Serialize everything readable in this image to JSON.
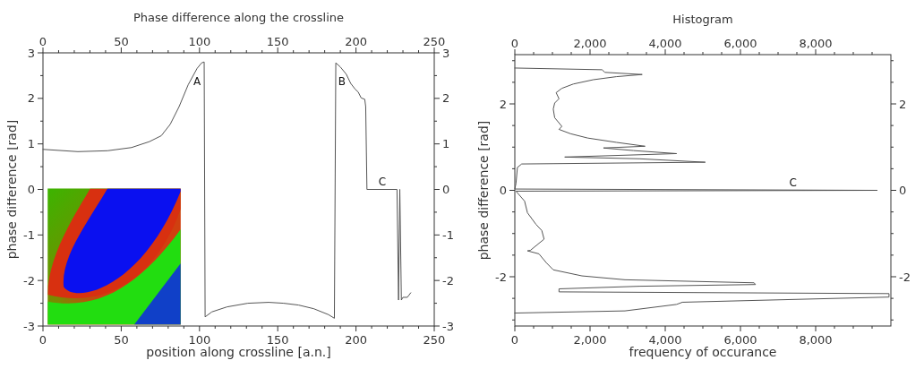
{
  "chart_data": [
    {
      "type": "line",
      "title": "Phase difference along the crossline",
      "xlabel": "position along crossline [a.n.]",
      "ylabel": "phase difference [rad]",
      "color": "#555555",
      "grid": false,
      "x": [
        0,
        22.3,
        41.3,
        56.6,
        68,
        75.6,
        81.3,
        87,
        92.8,
        98.5,
        101.4,
        103,
        103.6,
        107.9,
        117.6,
        130.9,
        144.2,
        153.8,
        163.3,
        173,
        182.4,
        186.2,
        187.1,
        190,
        193.8,
        196.6,
        199.5,
        201.4,
        203.3,
        205.6,
        206.2,
        207,
        226.2,
        227.2,
        228,
        229,
        230,
        232.8,
        235
      ],
      "values": [
        0.88,
        0.83,
        0.85,
        0.92,
        1.05,
        1.18,
        1.43,
        1.82,
        2.3,
        2.66,
        2.78,
        2.8,
        -2.8,
        -2.69,
        -2.58,
        -2.5,
        -2.48,
        -2.5,
        -2.54,
        -2.62,
        -2.75,
        -2.83,
        2.78,
        2.69,
        2.53,
        2.33,
        2.2,
        2.14,
        2.01,
        1.98,
        1.82,
        0,
        0,
        -2.43,
        0,
        -2.43,
        -2.37,
        -2.37,
        -2.27
      ],
      "xlim": [
        0,
        250
      ],
      "xticks": [
        0,
        {
          "value": 10,
          "label": null
        },
        {
          "value": 20,
          "label": null
        },
        {
          "value": 30,
          "label": null
        },
        {
          "value": 40,
          "label": null
        },
        50,
        {
          "value": 60,
          "label": null
        },
        {
          "value": 70,
          "label": null
        },
        {
          "value": 80,
          "label": null
        },
        {
          "value": 90,
          "label": null
        },
        100,
        {
          "value": 110,
          "label": null
        },
        {
          "value": 120,
          "label": null
        },
        {
          "value": 130,
          "label": null
        },
        {
          "value": 140,
          "label": null
        },
        150,
        {
          "value": 160,
          "label": null
        },
        {
          "value": 170,
          "label": null
        },
        {
          "value": 180,
          "label": null
        },
        {
          "value": 190,
          "label": null
        },
        200,
        {
          "value": 210,
          "label": null
        },
        {
          "value": 220,
          "label": null
        },
        {
          "value": 230,
          "label": null
        },
        {
          "value": 240,
          "label": null
        },
        250
      ],
      "x2lim": [
        0,
        250
      ],
      "x2ticks": [
        0,
        {
          "value": 10,
          "label": null
        },
        {
          "value": 20,
          "label": null
        },
        {
          "value": 30,
          "label": null
        },
        {
          "value": 40,
          "label": null
        },
        50,
        {
          "value": 60,
          "label": null
        },
        {
          "value": 70,
          "label": null
        },
        {
          "value": 80,
          "label": null
        },
        {
          "value": 90,
          "label": null
        },
        100,
        {
          "value": 110,
          "label": null
        },
        {
          "value": 120,
          "label": null
        },
        {
          "value": 130,
          "label": null
        },
        {
          "value": 140,
          "label": null
        },
        150,
        {
          "value": 160,
          "label": null
        },
        {
          "value": 170,
          "label": null
        },
        {
          "value": 180,
          "label": null
        },
        {
          "value": 190,
          "label": null
        },
        200,
        {
          "value": 210,
          "label": null
        },
        {
          "value": 220,
          "label": null
        },
        {
          "value": 230,
          "label": null
        },
        {
          "value": 240,
          "label": null
        },
        250
      ],
      "ylim": [
        -3,
        3
      ],
      "yticks": [
        -3,
        {
          "value": -2.5,
          "label": null
        },
        -2,
        {
          "value": -1.5,
          "label": null
        },
        -1,
        {
          "value": -0.5,
          "label": null
        },
        0,
        {
          "value": 0.5,
          "label": null
        },
        1,
        {
          "value": 1.5,
          "label": null
        },
        2,
        {
          "value": 2.5,
          "label": null
        },
        3
      ],
      "y2lim": [
        -3,
        3
      ],
      "y2ticks": [
        -3,
        {
          "value": -2.5,
          "label": null
        },
        -2,
        {
          "value": -1.5,
          "label": null
        },
        -1,
        {
          "value": -0.5,
          "label": null
        },
        0,
        {
          "value": 0.5,
          "label": null
        },
        1,
        {
          "value": 1.5,
          "label": null
        },
        2,
        {
          "value": 2.5,
          "label": null
        },
        3
      ],
      "annotations": [
        "A",
        "B",
        "C"
      ]
    },
    {
      "type": "line",
      "title": "Histogram",
      "xlabel": "frequency of occurance",
      "ylabel": "phase difference [rad]",
      "color": "#555555",
      "grid": false,
      "x": [
        0,
        2319,
        2395,
        3387,
        2700,
        2090,
        1556,
        1251,
        1098,
        1175,
        1060,
        1022,
        1060,
        1251,
        1175,
        1480,
        1937,
        2700,
        3463,
        2357,
        3158,
        4302,
        1327,
        3311,
        5065,
        183,
        69,
        31,
        0,
        9640,
        31,
        259,
        336,
        565,
        717,
        778,
        412,
        336,
        641,
        831,
        1022,
        1785,
        2929,
        6362,
        6400,
        3311,
        1175,
        1175,
        9950,
        9950,
        4455,
        4302,
        2929,
        0
      ],
      "values": [
        2.83,
        2.79,
        2.73,
        2.68,
        2.63,
        2.56,
        2.46,
        2.36,
        2.26,
        2.12,
        2.02,
        1.88,
        1.68,
        1.48,
        1.41,
        1.31,
        1.21,
        1.11,
        1.02,
        0.98,
        0.92,
        0.85,
        0.77,
        0.73,
        0.65,
        0.61,
        0.53,
        0.16,
        0.03,
        0,
        -0.02,
        -0.25,
        -0.52,
        -0.79,
        -0.93,
        -1.13,
        -1.39,
        -1.4,
        -1.47,
        -1.67,
        -1.84,
        -1.98,
        -2.07,
        -2.14,
        -2.18,
        -2.22,
        -2.28,
        -2.35,
        -2.39,
        -2.47,
        -2.59,
        -2.64,
        -2.79,
        -2.84
      ],
      "xlim": [
        0,
        10000
      ],
      "xticks": [
        0,
        {
          "value": 500,
          "label": null
        },
        {
          "value": 1000,
          "label": null
        },
        {
          "value": 1500,
          "label": null
        },
        {
          "value": 2000,
          "label": "2,000"
        },
        {
          "value": 2500,
          "label": null
        },
        {
          "value": 3000,
          "label": null
        },
        {
          "value": 3500,
          "label": null
        },
        {
          "value": 4000,
          "label": "4,000"
        },
        {
          "value": 4500,
          "label": null
        },
        {
          "value": 5000,
          "label": null
        },
        {
          "value": 5500,
          "label": null
        },
        {
          "value": 6000,
          "label": "6,000"
        },
        {
          "value": 6500,
          "label": null
        },
        {
          "value": 7000,
          "label": null
        },
        {
          "value": 7500,
          "label": null
        },
        {
          "value": 8000,
          "label": "8,000"
        },
        {
          "value": 8500,
          "label": null
        },
        {
          "value": 9000,
          "label": null
        },
        {
          "value": 9500,
          "label": null
        }
      ],
      "x2lim": [
        0,
        10000
      ],
      "x2ticks": [
        0,
        {
          "value": 500,
          "label": null
        },
        {
          "value": 1000,
          "label": null
        },
        {
          "value": 1500,
          "label": null
        },
        {
          "value": 2000,
          "label": "2,000"
        },
        {
          "value": 2500,
          "label": null
        },
        {
          "value": 3000,
          "label": null
        },
        {
          "value": 3500,
          "label": null
        },
        {
          "value": 4000,
          "label": "4,000"
        },
        {
          "value": 4500,
          "label": null
        },
        {
          "value": 5000,
          "label": null
        },
        {
          "value": 5500,
          "label": null
        },
        {
          "value": 6000,
          "label": "6,000"
        },
        {
          "value": 6500,
          "label": null
        },
        {
          "value": 7000,
          "label": null
        },
        {
          "value": 7500,
          "label": null
        },
        {
          "value": 8000,
          "label": "8,000"
        },
        {
          "value": 8500,
          "label": null
        },
        {
          "value": 9000,
          "label": null
        },
        {
          "value": 9500,
          "label": null
        }
      ],
      "ylim": [
        -3.14,
        3.14
      ],
      "yticks": [
        {
          "value": -3,
          "label": null
        },
        {
          "value": -2.5,
          "label": null
        },
        -2,
        {
          "value": -1.5,
          "label": null
        },
        {
          "value": -1,
          "label": null
        },
        {
          "value": -0.5,
          "label": null
        },
        0,
        {
          "value": 0.5,
          "label": null
        },
        {
          "value": 1,
          "label": null
        },
        {
          "value": 1.5,
          "label": null
        },
        2,
        {
          "value": 2.5,
          "label": null
        },
        {
          "value": 3,
          "label": null
        }
      ],
      "y2lim": [
        -3.14,
        3.14
      ],
      "y2ticks": [
        {
          "value": -3,
          "label": null
        },
        {
          "value": -2.5,
          "label": null
        },
        -2,
        {
          "value": -1.5,
          "label": null
        },
        {
          "value": -1,
          "label": null
        },
        {
          "value": -0.5,
          "label": null
        },
        0,
        {
          "value": 0.5,
          "label": null
        },
        {
          "value": 1,
          "label": null
        },
        {
          "value": 1.5,
          "label": null
        },
        2,
        {
          "value": 2.5,
          "label": null
        },
        {
          "value": 3,
          "label": null
        }
      ],
      "annotations": [
        "C"
      ]
    }
  ]
}
